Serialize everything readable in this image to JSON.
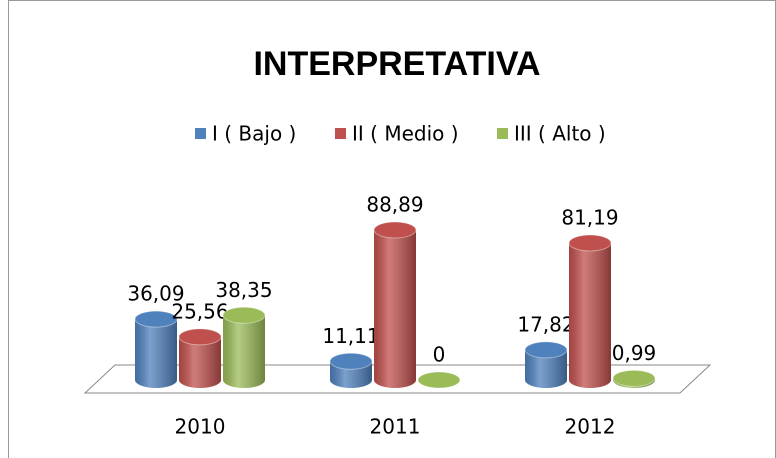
{
  "chart_data": {
    "type": "bar3d",
    "title": "INTERPRETATIVA",
    "categories": [
      "2010",
      "2011",
      "2012"
    ],
    "series": [
      {
        "name": "I ( Bajo )",
        "color": "#4f81bd",
        "values": [
          36.09,
          11.11,
          17.82
        ],
        "value_labels": [
          "36,09",
          "11,11",
          "17,82"
        ]
      },
      {
        "name": "II ( Medio )",
        "color": "#c0504d",
        "values": [
          25.56,
          88.89,
          81.19
        ],
        "value_labels": [
          "25,56",
          "88,89",
          "81,19"
        ]
      },
      {
        "name": "III ( Alto )",
        "color": "#9bbb59",
        "values": [
          38.35,
          0,
          0.99
        ],
        "value_labels": [
          "38,35",
          "0",
          "0,99"
        ]
      }
    ]
  }
}
